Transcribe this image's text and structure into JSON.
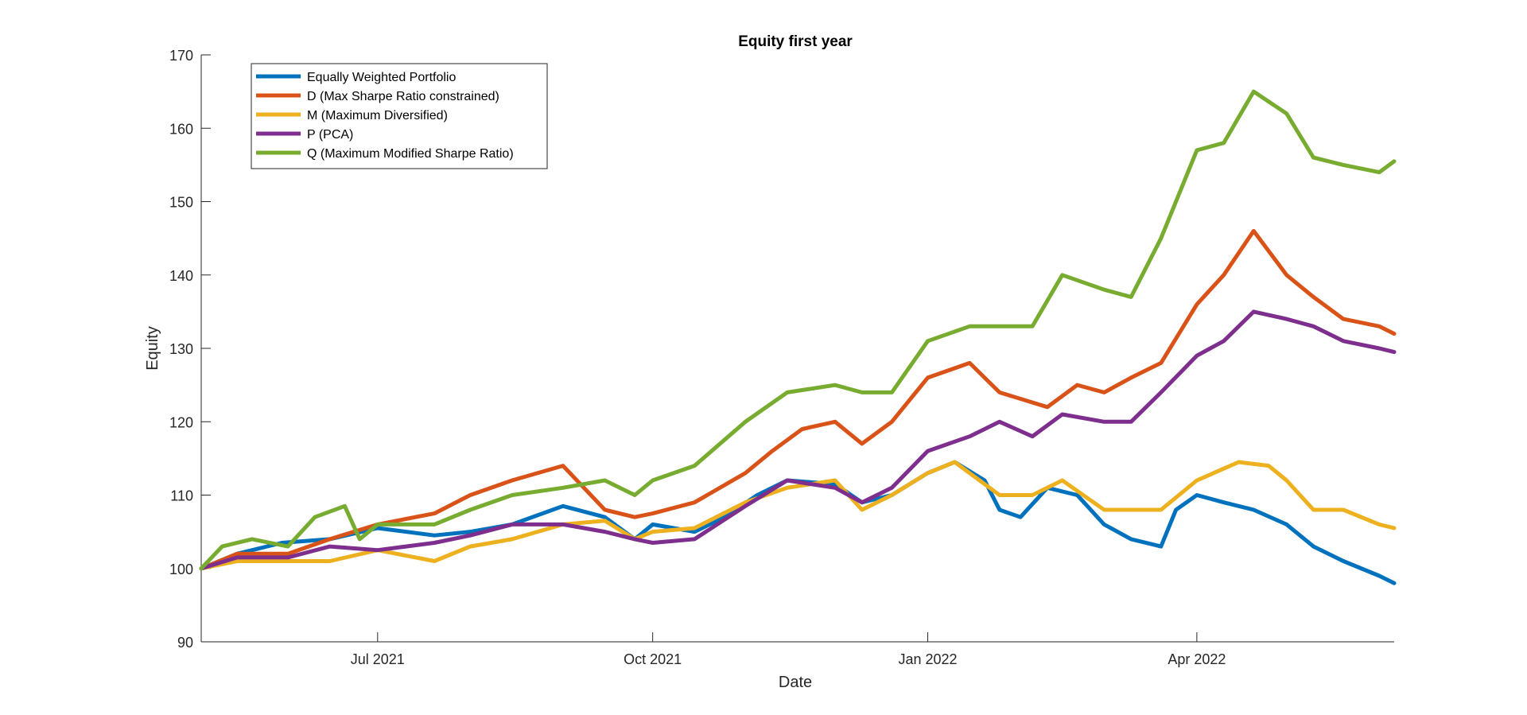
{
  "chart_data": {
    "type": "line",
    "title": "Equity first year",
    "xlabel": "Date",
    "ylabel": "Equity",
    "x_range": [
      "2021-05-03",
      "2022-06-06"
    ],
    "ylim": [
      90,
      170
    ],
    "yticks": [
      90,
      100,
      110,
      120,
      130,
      140,
      150,
      160,
      170
    ],
    "xticks": [
      {
        "date": "2021-07-01",
        "label": "Jul 2021"
      },
      {
        "date": "2021-10-01",
        "label": "Oct 2021"
      },
      {
        "date": "2022-01-01",
        "label": "Jan 2022"
      },
      {
        "date": "2022-04-01",
        "label": "Apr 2022"
      }
    ],
    "grid": false,
    "legend_position": "top-left",
    "series": [
      {
        "name": "Equally Weighted Portfolio",
        "color": "#0072BD",
        "points": [
          [
            "2021-05-03",
            100
          ],
          [
            "2021-05-15",
            102
          ],
          [
            "2021-05-30",
            103.5
          ],
          [
            "2021-06-15",
            104
          ],
          [
            "2021-07-01",
            105.5
          ],
          [
            "2021-07-20",
            104.5
          ],
          [
            "2021-08-01",
            105
          ],
          [
            "2021-08-15",
            106
          ],
          [
            "2021-09-01",
            108.5
          ],
          [
            "2021-09-15",
            107
          ],
          [
            "2021-09-25",
            104
          ],
          [
            "2021-10-01",
            106
          ],
          [
            "2021-10-15",
            105
          ],
          [
            "2021-10-25",
            107
          ],
          [
            "2021-11-05",
            110
          ],
          [
            "2021-11-15",
            112
          ],
          [
            "2021-12-01",
            111.5
          ],
          [
            "2021-12-10",
            109
          ],
          [
            "2021-12-20",
            110
          ],
          [
            "2022-01-01",
            113
          ],
          [
            "2022-01-10",
            114.5
          ],
          [
            "2022-01-20",
            112
          ],
          [
            "2022-01-25",
            108
          ],
          [
            "2022-02-01",
            107
          ],
          [
            "2022-02-10",
            111
          ],
          [
            "2022-02-20",
            110
          ],
          [
            "2022-03-01",
            106
          ],
          [
            "2022-03-10",
            104
          ],
          [
            "2022-03-20",
            103
          ],
          [
            "2022-03-25",
            108
          ],
          [
            "2022-04-01",
            110
          ],
          [
            "2022-04-10",
            109
          ],
          [
            "2022-04-20",
            108
          ],
          [
            "2022-05-01",
            106
          ],
          [
            "2022-05-10",
            103
          ],
          [
            "2022-05-20",
            101
          ],
          [
            "2022-06-01",
            99
          ],
          [
            "2022-06-06",
            98
          ]
        ]
      },
      {
        "name": "D (Max Sharpe Ratio constrained)",
        "color": "#D95319",
        "points": [
          [
            "2021-05-03",
            100
          ],
          [
            "2021-05-15",
            102
          ],
          [
            "2021-06-01",
            102
          ],
          [
            "2021-06-15",
            104
          ],
          [
            "2021-07-01",
            106
          ],
          [
            "2021-07-20",
            107.5
          ],
          [
            "2021-08-01",
            110
          ],
          [
            "2021-08-15",
            112
          ],
          [
            "2021-09-01",
            114
          ],
          [
            "2021-09-15",
            108
          ],
          [
            "2021-09-25",
            107
          ],
          [
            "2021-10-01",
            107.5
          ],
          [
            "2021-10-15",
            109
          ],
          [
            "2021-11-01",
            113
          ],
          [
            "2021-11-10",
            116
          ],
          [
            "2021-11-20",
            119
          ],
          [
            "2021-12-01",
            120
          ],
          [
            "2021-12-10",
            117
          ],
          [
            "2021-12-20",
            120
          ],
          [
            "2022-01-01",
            126
          ],
          [
            "2022-01-15",
            128
          ],
          [
            "2022-01-25",
            124
          ],
          [
            "2022-02-10",
            122
          ],
          [
            "2022-02-20",
            125
          ],
          [
            "2022-03-01",
            124
          ],
          [
            "2022-03-10",
            126
          ],
          [
            "2022-03-20",
            128
          ],
          [
            "2022-04-01",
            136
          ],
          [
            "2022-04-10",
            140
          ],
          [
            "2022-04-20",
            146
          ],
          [
            "2022-05-01",
            140
          ],
          [
            "2022-05-10",
            137
          ],
          [
            "2022-05-20",
            134
          ],
          [
            "2022-06-01",
            133
          ],
          [
            "2022-06-06",
            132
          ]
        ]
      },
      {
        "name": "M (Maximum Diversified)",
        "color": "#EDB120",
        "points": [
          [
            "2021-05-03",
            100
          ],
          [
            "2021-05-15",
            101
          ],
          [
            "2021-06-01",
            101
          ],
          [
            "2021-06-15",
            101
          ],
          [
            "2021-07-01",
            102.5
          ],
          [
            "2021-07-20",
            101
          ],
          [
            "2021-08-01",
            103
          ],
          [
            "2021-08-15",
            104
          ],
          [
            "2021-09-01",
            106
          ],
          [
            "2021-09-15",
            106.5
          ],
          [
            "2021-09-25",
            104
          ],
          [
            "2021-10-01",
            105
          ],
          [
            "2021-10-15",
            105.5
          ],
          [
            "2021-11-01",
            109
          ],
          [
            "2021-11-15",
            111
          ],
          [
            "2021-12-01",
            112
          ],
          [
            "2021-12-10",
            108
          ],
          [
            "2021-12-20",
            110
          ],
          [
            "2022-01-01",
            113
          ],
          [
            "2022-01-10",
            114.5
          ],
          [
            "2022-01-25",
            110
          ],
          [
            "2022-02-05",
            110
          ],
          [
            "2022-02-15",
            112
          ],
          [
            "2022-03-01",
            108
          ],
          [
            "2022-03-10",
            108
          ],
          [
            "2022-03-20",
            108
          ],
          [
            "2022-04-01",
            112
          ],
          [
            "2022-04-15",
            114.5
          ],
          [
            "2022-04-25",
            114
          ],
          [
            "2022-05-01",
            112
          ],
          [
            "2022-05-10",
            108
          ],
          [
            "2022-05-20",
            108
          ],
          [
            "2022-06-01",
            106
          ],
          [
            "2022-06-06",
            105.5
          ]
        ]
      },
      {
        "name": "P (PCA)",
        "color": "#7E2F8E",
        "points": [
          [
            "2021-05-03",
            100
          ],
          [
            "2021-05-15",
            101.5
          ],
          [
            "2021-06-01",
            101.5
          ],
          [
            "2021-06-15",
            103
          ],
          [
            "2021-07-01",
            102.5
          ],
          [
            "2021-07-20",
            103.5
          ],
          [
            "2021-08-01",
            104.5
          ],
          [
            "2021-08-15",
            106
          ],
          [
            "2021-09-01",
            106
          ],
          [
            "2021-09-15",
            105
          ],
          [
            "2021-09-25",
            104
          ],
          [
            "2021-10-01",
            103.5
          ],
          [
            "2021-10-15",
            104
          ],
          [
            "2021-11-01",
            108.5
          ],
          [
            "2021-11-15",
            112
          ],
          [
            "2021-12-01",
            111
          ],
          [
            "2021-12-10",
            109
          ],
          [
            "2021-12-20",
            111
          ],
          [
            "2022-01-01",
            116
          ],
          [
            "2022-01-15",
            118
          ],
          [
            "2022-01-25",
            120
          ],
          [
            "2022-02-05",
            118
          ],
          [
            "2022-02-15",
            121
          ],
          [
            "2022-03-01",
            120
          ],
          [
            "2022-03-10",
            120
          ],
          [
            "2022-03-20",
            124
          ],
          [
            "2022-04-01",
            129
          ],
          [
            "2022-04-10",
            131
          ],
          [
            "2022-04-20",
            135
          ],
          [
            "2022-05-01",
            134
          ],
          [
            "2022-05-10",
            133
          ],
          [
            "2022-05-20",
            131
          ],
          [
            "2022-06-01",
            130
          ],
          [
            "2022-06-06",
            129.5
          ]
        ]
      },
      {
        "name": "Q (Maximum Modified Sharpe Ratio)",
        "color": "#77AC30",
        "points": [
          [
            "2021-05-03",
            100
          ],
          [
            "2021-05-10",
            103
          ],
          [
            "2021-05-20",
            104
          ],
          [
            "2021-06-01",
            103
          ],
          [
            "2021-06-10",
            107
          ],
          [
            "2021-06-20",
            108.5
          ],
          [
            "2021-06-25",
            104
          ],
          [
            "2021-07-01",
            106
          ],
          [
            "2021-07-20",
            106
          ],
          [
            "2021-08-01",
            108
          ],
          [
            "2021-08-15",
            110
          ],
          [
            "2021-09-01",
            111
          ],
          [
            "2021-09-15",
            112
          ],
          [
            "2021-09-25",
            110
          ],
          [
            "2021-10-01",
            112
          ],
          [
            "2021-10-15",
            114
          ],
          [
            "2021-11-01",
            120
          ],
          [
            "2021-11-15",
            124
          ],
          [
            "2021-12-01",
            125
          ],
          [
            "2021-12-10",
            124
          ],
          [
            "2021-12-20",
            124
          ],
          [
            "2022-01-01",
            131
          ],
          [
            "2022-01-15",
            133
          ],
          [
            "2022-01-25",
            133
          ],
          [
            "2022-02-05",
            133
          ],
          [
            "2022-02-15",
            140
          ],
          [
            "2022-03-01",
            138
          ],
          [
            "2022-03-10",
            137
          ],
          [
            "2022-03-20",
            145
          ],
          [
            "2022-04-01",
            157
          ],
          [
            "2022-04-10",
            158
          ],
          [
            "2022-04-20",
            165
          ],
          [
            "2022-05-01",
            162
          ],
          [
            "2022-05-10",
            156
          ],
          [
            "2022-05-20",
            155
          ],
          [
            "2022-06-01",
            154
          ],
          [
            "2022-06-06",
            155.5
          ]
        ]
      }
    ]
  }
}
